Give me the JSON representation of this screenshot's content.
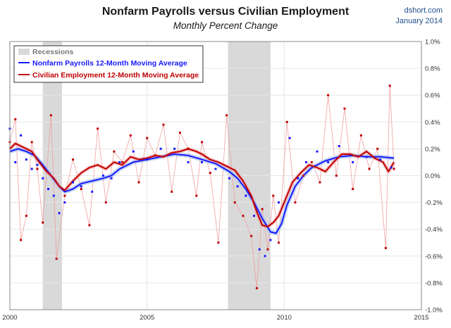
{
  "header": {
    "title": "Nonfarm Payrolls versus Civilian Employment",
    "subtitle": "Monthly Percent Change",
    "source": "dshort.com",
    "date": "January 2014"
  },
  "colors": {
    "payrolls": "#1a1aff",
    "payrolls_dots": "#1a1aff",
    "civilian": "#c00000",
    "civilian_dots": "#c00000",
    "civilian_thin": "#f0a0a0",
    "recession": "#d9d9d9",
    "grid": "#e6e6e6"
  },
  "legend": {
    "recessions": "Recessions",
    "payrolls": "Nonfarm Payrolls 12-Month Moving Average",
    "civilian": "Civilian Employment 12-Month Moving Average"
  },
  "chart_data": {
    "type": "line",
    "title": "Nonfarm Payrolls versus Civilian Employment",
    "subtitle": "Monthly Percent Change",
    "xlim": [
      2000,
      2015
    ],
    "ylim": [
      -1.0,
      1.0
    ],
    "x_ticks": [
      "2000",
      "2005",
      "2010",
      "2015"
    ],
    "y_ticks": [
      "1.0%",
      "0.8%",
      "0.6%",
      "0.4%",
      "0.2%",
      "0.0%",
      "-0.2%",
      "-0.4%",
      "-0.6%",
      "-0.8%",
      "-1.0%"
    ],
    "recessions": [
      [
        2001.2,
        2001.9
      ],
      [
        2007.95,
        2009.5
      ]
    ],
    "series": [
      {
        "name": "Nonfarm Payrolls 12-Month Moving Average",
        "style": "smooth-line",
        "points": [
          [
            2000.0,
            0.18
          ],
          [
            2000.3,
            0.2
          ],
          [
            2000.6,
            0.18
          ],
          [
            2000.9,
            0.15
          ],
          [
            2001.2,
            0.08
          ],
          [
            2001.5,
            0.0
          ],
          [
            2001.8,
            -0.08
          ],
          [
            2002.0,
            -0.12
          ],
          [
            2002.3,
            -0.1
          ],
          [
            2002.6,
            -0.06
          ],
          [
            2003.0,
            -0.04
          ],
          [
            2003.4,
            -0.02
          ],
          [
            2003.7,
            0.0
          ],
          [
            2004.0,
            0.05
          ],
          [
            2004.5,
            0.1
          ],
          [
            2005.0,
            0.12
          ],
          [
            2005.5,
            0.14
          ],
          [
            2006.0,
            0.16
          ],
          [
            2006.5,
            0.15
          ],
          [
            2007.0,
            0.12
          ],
          [
            2007.5,
            0.09
          ],
          [
            2008.0,
            0.03
          ],
          [
            2008.3,
            -0.02
          ],
          [
            2008.6,
            -0.1
          ],
          [
            2008.9,
            -0.2
          ],
          [
            2009.2,
            -0.32
          ],
          [
            2009.5,
            -0.42
          ],
          [
            2009.7,
            -0.43
          ],
          [
            2009.9,
            -0.36
          ],
          [
            2010.1,
            -0.22
          ],
          [
            2010.4,
            -0.08
          ],
          [
            2010.7,
            0.0
          ],
          [
            2011.0,
            0.06
          ],
          [
            2011.5,
            0.11
          ],
          [
            2012.0,
            0.14
          ],
          [
            2012.5,
            0.15
          ],
          [
            2013.0,
            0.14
          ],
          [
            2013.5,
            0.14
          ],
          [
            2014.0,
            0.13
          ]
        ]
      },
      {
        "name": "Civilian Employment 12-Month Moving Average",
        "style": "jagged-line",
        "points": [
          [
            2000.0,
            0.2
          ],
          [
            2000.2,
            0.24
          ],
          [
            2000.4,
            0.22
          ],
          [
            2000.6,
            0.2
          ],
          [
            2000.8,
            0.18
          ],
          [
            2001.0,
            0.12
          ],
          [
            2001.3,
            0.04
          ],
          [
            2001.6,
            -0.02
          ],
          [
            2001.8,
            -0.08
          ],
          [
            2002.0,
            -0.11
          ],
          [
            2002.3,
            -0.04
          ],
          [
            2002.6,
            0.02
          ],
          [
            2002.9,
            0.06
          ],
          [
            2003.2,
            0.08
          ],
          [
            2003.5,
            0.05
          ],
          [
            2003.8,
            0.1
          ],
          [
            2004.1,
            0.08
          ],
          [
            2004.4,
            0.14
          ],
          [
            2004.7,
            0.12
          ],
          [
            2005.0,
            0.13
          ],
          [
            2005.3,
            0.15
          ],
          [
            2005.6,
            0.14
          ],
          [
            2005.9,
            0.17
          ],
          [
            2006.2,
            0.18
          ],
          [
            2006.5,
            0.2
          ],
          [
            2006.8,
            0.18
          ],
          [
            2007.0,
            0.16
          ],
          [
            2007.3,
            0.12
          ],
          [
            2007.6,
            0.1
          ],
          [
            2007.9,
            0.07
          ],
          [
            2008.2,
            0.04
          ],
          [
            2008.5,
            -0.04
          ],
          [
            2008.8,
            -0.15
          ],
          [
            2009.0,
            -0.27
          ],
          [
            2009.2,
            -0.37
          ],
          [
            2009.4,
            -0.38
          ],
          [
            2009.6,
            -0.35
          ],
          [
            2009.8,
            -0.3
          ],
          [
            2010.0,
            -0.2
          ],
          [
            2010.3,
            -0.05
          ],
          [
            2010.6,
            0.02
          ],
          [
            2010.9,
            0.08
          ],
          [
            2011.2,
            0.06
          ],
          [
            2011.5,
            0.03
          ],
          [
            2011.8,
            0.1
          ],
          [
            2012.1,
            0.16
          ],
          [
            2012.4,
            0.16
          ],
          [
            2012.7,
            0.14
          ],
          [
            2013.0,
            0.18
          ],
          [
            2013.3,
            0.13
          ],
          [
            2013.6,
            0.1
          ],
          [
            2013.8,
            0.03
          ],
          [
            2014.0,
            0.1
          ]
        ]
      },
      {
        "name": "Nonfarm Payrolls",
        "style": "dots",
        "points": [
          [
            2000.0,
            0.35
          ],
          [
            2000.2,
            0.1
          ],
          [
            2000.4,
            0.3
          ],
          [
            2000.6,
            0.12
          ],
          [
            2000.8,
            0.05
          ],
          [
            2001.0,
            0.08
          ],
          [
            2001.2,
            -0.02
          ],
          [
            2001.4,
            -0.1
          ],
          [
            2001.6,
            -0.15
          ],
          [
            2001.8,
            -0.28
          ],
          [
            2002.0,
            -0.2
          ],
          [
            2002.3,
            -0.05
          ],
          [
            2002.6,
            -0.08
          ],
          [
            2003.0,
            -0.12
          ],
          [
            2003.4,
            0.0
          ],
          [
            2003.7,
            -0.02
          ],
          [
            2004.0,
            0.1
          ],
          [
            2004.5,
            0.18
          ],
          [
            2005.0,
            0.12
          ],
          [
            2005.5,
            0.2
          ],
          [
            2006.0,
            0.2
          ],
          [
            2006.5,
            0.1
          ],
          [
            2007.0,
            0.1
          ],
          [
            2007.5,
            0.05
          ],
          [
            2008.0,
            -0.02
          ],
          [
            2008.3,
            -0.08
          ],
          [
            2008.6,
            -0.15
          ],
          [
            2008.9,
            -0.3
          ],
          [
            2009.1,
            -0.55
          ],
          [
            2009.3,
            -0.6
          ],
          [
            2009.5,
            -0.48
          ],
          [
            2009.8,
            -0.2
          ],
          [
            2010.2,
            0.28
          ],
          [
            2010.5,
            -0.02
          ],
          [
            2010.8,
            0.1
          ],
          [
            2011.2,
            0.18
          ],
          [
            2011.6,
            0.1
          ],
          [
            2012.0,
            0.22
          ],
          [
            2012.5,
            0.1
          ],
          [
            2013.0,
            0.14
          ],
          [
            2013.5,
            0.12
          ],
          [
            2013.9,
            0.06
          ]
        ]
      },
      {
        "name": "Civilian Employment",
        "style": "dots",
        "points": [
          [
            2000.0,
            0.25
          ],
          [
            2000.2,
            0.42
          ],
          [
            2000.4,
            -0.48
          ],
          [
            2000.6,
            -0.3
          ],
          [
            2000.8,
            0.25
          ],
          [
            2001.0,
            0.05
          ],
          [
            2001.2,
            -0.35
          ],
          [
            2001.5,
            0.45
          ],
          [
            2001.7,
            -0.62
          ],
          [
            2002.0,
            -0.15
          ],
          [
            2002.3,
            0.12
          ],
          [
            2002.6,
            -0.1
          ],
          [
            2002.9,
            -0.37
          ],
          [
            2003.2,
            0.35
          ],
          [
            2003.5,
            -0.2
          ],
          [
            2003.8,
            0.18
          ],
          [
            2004.1,
            0.1
          ],
          [
            2004.4,
            0.3
          ],
          [
            2004.7,
            -0.05
          ],
          [
            2005.0,
            0.28
          ],
          [
            2005.3,
            0.15
          ],
          [
            2005.6,
            0.38
          ],
          [
            2005.9,
            -0.12
          ],
          [
            2006.2,
            0.32
          ],
          [
            2006.5,
            0.2
          ],
          [
            2006.8,
            -0.15
          ],
          [
            2007.0,
            0.25
          ],
          [
            2007.3,
            0.02
          ],
          [
            2007.6,
            -0.5
          ],
          [
            2007.9,
            0.45
          ],
          [
            2008.2,
            -0.2
          ],
          [
            2008.5,
            -0.3
          ],
          [
            2008.8,
            -0.45
          ],
          [
            2009.0,
            -0.84
          ],
          [
            2009.2,
            -0.25
          ],
          [
            2009.4,
            -0.55
          ],
          [
            2009.6,
            -0.15
          ],
          [
            2009.8,
            -0.5
          ],
          [
            2010.1,
            0.4
          ],
          [
            2010.4,
            -0.2
          ],
          [
            2010.7,
            0.0
          ],
          [
            2011.0,
            0.1
          ],
          [
            2011.3,
            -0.05
          ],
          [
            2011.6,
            0.6
          ],
          [
            2011.9,
            0.0
          ],
          [
            2012.2,
            0.5
          ],
          [
            2012.5,
            -0.1
          ],
          [
            2012.8,
            0.3
          ],
          [
            2013.1,
            0.05
          ],
          [
            2013.4,
            0.2
          ],
          [
            2013.7,
            -0.54
          ],
          [
            2013.85,
            0.67
          ],
          [
            2014.0,
            0.05
          ]
        ]
      }
    ]
  }
}
